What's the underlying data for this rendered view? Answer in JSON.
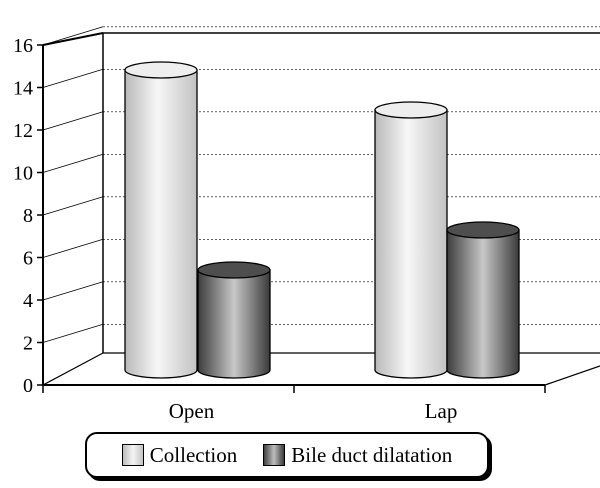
{
  "chart_data": {
    "type": "bar",
    "style": "3d-cylinder",
    "categories": [
      "Open",
      "Lap"
    ],
    "series": [
      {
        "name": "Collection",
        "values": [
          15,
          13
        ],
        "color": "#e6e6e6"
      },
      {
        "name": "Bile duct dilatation",
        "values": [
          5,
          7
        ],
        "color": "#8a8a8a"
      }
    ],
    "ylim": [
      0,
      16
    ],
    "yticks": [
      "0",
      "2",
      "4",
      "6",
      "8",
      "10",
      "12",
      "14",
      "16"
    ],
    "grid": true,
    "legend": "bottom"
  }
}
